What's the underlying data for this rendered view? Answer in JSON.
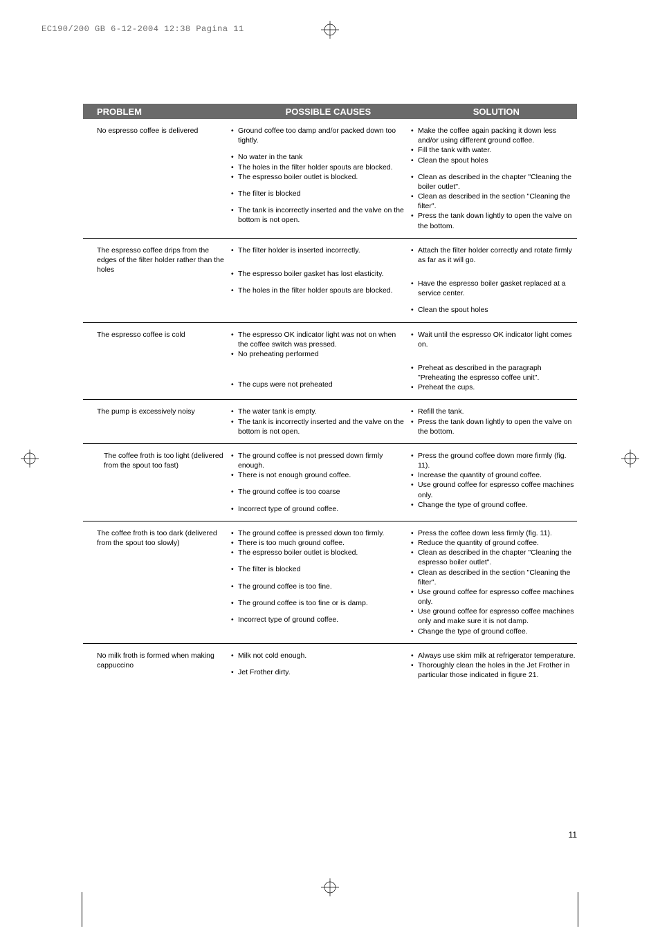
{
  "print_header": "EC190/200 GB  6-12-2004  12:38  Pagina 11",
  "headers": {
    "problem": "PROBLEM",
    "causes": "POSSIBLE CAUSES",
    "solution": "SOLUTION"
  },
  "page_number": "11",
  "colors": {
    "header_bg": "#6a6a6a",
    "header_text": "#ffffff",
    "body_text": "#000000",
    "print_header_text": "#6b6b6b"
  },
  "rows": [
    {
      "problem": "No espresso coffee is delivered",
      "causes": [
        "Ground coffee too damp and/or packed down too tightly.",
        "",
        "No water in the tank",
        "The holes in the filter holder spouts are blocked.",
        "The espresso boiler outlet is blocked.",
        "",
        "The filter is blocked",
        "",
        "The tank is incorrectly inserted and the valve on the bottom is not open."
      ],
      "solutions": [
        "Make the coffee again packing it down less and/or using different ground coffee.",
        "Fill the tank with water.",
        "Clean the spout holes",
        "",
        "Clean as described in the chapter \"Cleaning the boiler outlet\".",
        "Clean as described in the section \"Cleaning the filter\".",
        "Press the tank down lightly to open the valve on the bottom."
      ]
    },
    {
      "problem": "The espresso coffee drips from the edges of the filter holder rather than the holes",
      "causes": [
        "The filter holder is inserted incorrectly.",
        "",
        "",
        "The espresso boiler gasket has lost elasticity.",
        "",
        "The holes in the filter holder spouts are blocked."
      ],
      "solutions": [
        "Attach the filter holder correctly and rotate firmly as far as it will go.",
        "",
        "",
        "Have the espresso boiler gasket replaced at a service center.",
        "",
        "Clean the spout holes"
      ]
    },
    {
      "problem": "The espresso coffee is cold",
      "causes": [
        "The espresso OK indicator light was not on when the coffee switch was pressed.",
        "No preheating performed",
        "",
        "",
        "",
        "The cups were not preheated"
      ],
      "solutions": [
        "Wait until the espresso OK indicator light comes on.",
        "",
        "",
        "Preheat as described in the paragraph \"Preheating the espresso coffee unit\".",
        "Preheat the cups."
      ]
    },
    {
      "problem": "The pump is excessively noisy",
      "causes": [
        "The water tank is empty.",
        "The tank is incorrectly inserted and the valve on the bottom is not open."
      ],
      "solutions": [
        "Refill the tank.",
        "Press the tank down lightly to open the valve on the bottom."
      ]
    },
    {
      "problem": "The coffee froth is too light (delivered from the spout too fast)",
      "causes": [
        "The ground coffee is not pressed down firmly enough.",
        "There is not enough ground coffee.",
        "",
        "The ground coffee is too coarse",
        "",
        "Incorrect type of ground coffee."
      ],
      "solutions": [
        "Press the ground coffee down more firmly (fig. 11).",
        "Increase the quantity of ground coffee.",
        "Use ground coffee for espresso coffee machines only.",
        "Change the type of ground coffee."
      ]
    },
    {
      "problem": "The coffee froth is too dark (delivered from the spout too slowly)",
      "causes": [
        "The ground coffee is pressed down too firmly.",
        "There is too much ground coffee.",
        "The espresso boiler outlet is blocked.",
        "",
        "The filter is blocked",
        "",
        "The ground coffee is too fine.",
        "",
        "The ground coffee is too fine or is damp.",
        "",
        "Incorrect type of ground coffee."
      ],
      "solutions": [
        "Press the coffee down less firmly (fig. 11).",
        "Reduce the quantity of ground coffee.",
        "Clean as described in the chapter \"Cleaning the espresso boiler outlet\".",
        "Clean as described in the section \"Cleaning the filter\".",
        "Use ground coffee for espresso coffee machines only.",
        "Use ground coffee for espresso coffee machines only and make sure it is not damp.",
        "Change the type of ground coffee."
      ]
    },
    {
      "problem": "No milk froth is formed when making cappuccino",
      "causes": [
        "Milk not cold enough.",
        "",
        "Jet Frother dirty."
      ],
      "solutions": [
        "Always use skim milk at refrigerator temperature.",
        "Thoroughly clean the holes in the Jet Frother in particular those indicated in figure 21."
      ]
    }
  ]
}
